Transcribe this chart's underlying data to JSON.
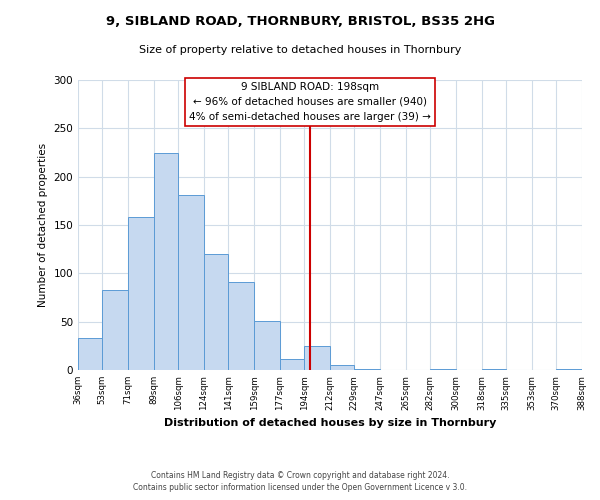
{
  "title": "9, SIBLAND ROAD, THORNBURY, BRISTOL, BS35 2HG",
  "subtitle": "Size of property relative to detached houses in Thornbury",
  "xlabel": "Distribution of detached houses by size in Thornbury",
  "ylabel": "Number of detached properties",
  "bin_edges": [
    36,
    53,
    71,
    89,
    106,
    124,
    141,
    159,
    177,
    194,
    212,
    229,
    247,
    265,
    282,
    300,
    318,
    335,
    353,
    370,
    388
  ],
  "bin_labels": [
    "36sqm",
    "53sqm",
    "71sqm",
    "89sqm",
    "106sqm",
    "124sqm",
    "141sqm",
    "159sqm",
    "177sqm",
    "194sqm",
    "212sqm",
    "229sqm",
    "247sqm",
    "265sqm",
    "282sqm",
    "300sqm",
    "318sqm",
    "335sqm",
    "353sqm",
    "370sqm",
    "388sqm"
  ],
  "counts": [
    33,
    83,
    158,
    224,
    181,
    120,
    91,
    51,
    11,
    25,
    5,
    1,
    0,
    0,
    1,
    0,
    1,
    0,
    0,
    1
  ],
  "bar_color": "#c6d9f0",
  "bar_edge_color": "#5b9bd5",
  "property_value": 198,
  "vline_color": "#cc0000",
  "annotation_title": "9 SIBLAND ROAD: 198sqm",
  "annotation_line1": "← 96% of detached houses are smaller (940)",
  "annotation_line2": "4% of semi-detached houses are larger (39) →",
  "annotation_box_color": "#ffffff",
  "annotation_box_edge_color": "#cc0000",
  "ylim": [
    0,
    300
  ],
  "yticks": [
    0,
    50,
    100,
    150,
    200,
    250,
    300
  ],
  "footer1": "Contains HM Land Registry data © Crown copyright and database right 2024.",
  "footer2": "Contains public sector information licensed under the Open Government Licence v 3.0.",
  "background_color": "#ffffff",
  "grid_color": "#d0dce8"
}
